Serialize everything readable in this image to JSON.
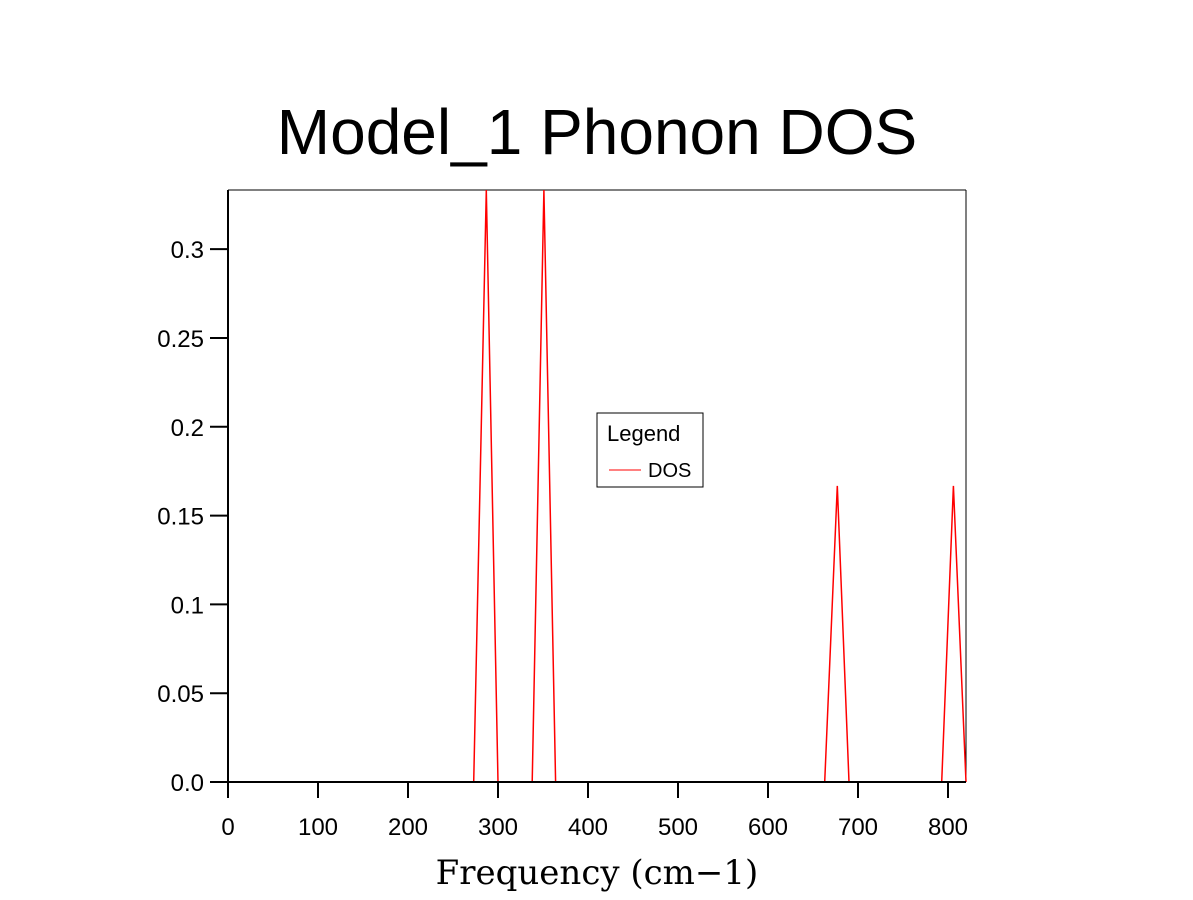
{
  "chart_data": {
    "type": "line",
    "title": "Model_1 Phonon DOS",
    "xlabel": "Frequency (cm−1)",
    "ylabel": "",
    "xlim": [
      0,
      820
    ],
    "ylim": [
      0,
      0.3333
    ],
    "xticks": [
      0,
      100,
      200,
      300,
      400,
      500,
      600,
      700,
      800
    ],
    "xtick_labels": [
      "0",
      "100",
      "200",
      "300",
      "400",
      "500",
      "600",
      "700",
      "800"
    ],
    "yticks": [
      0.0,
      0.05,
      0.1,
      0.15,
      0.2,
      0.25,
      0.3
    ],
    "ytick_labels": [
      "0.0",
      "0.05",
      "0.1",
      "0.15",
      "0.2",
      "0.25",
      "0.3"
    ],
    "grid": false,
    "legend": {
      "title": "Legend",
      "placement": "center-right",
      "entries": [
        "DOS"
      ]
    },
    "series": [
      {
        "name": "DOS",
        "color": "#ff0000",
        "x": [
          0,
          273,
          287,
          300,
          338,
          351,
          364,
          663,
          677,
          690,
          793,
          806,
          820
        ],
        "y": [
          0,
          0,
          0.3333,
          0,
          0,
          0.3333,
          0,
          0,
          0.1667,
          0,
          0,
          0.1667,
          0
        ]
      }
    ]
  }
}
